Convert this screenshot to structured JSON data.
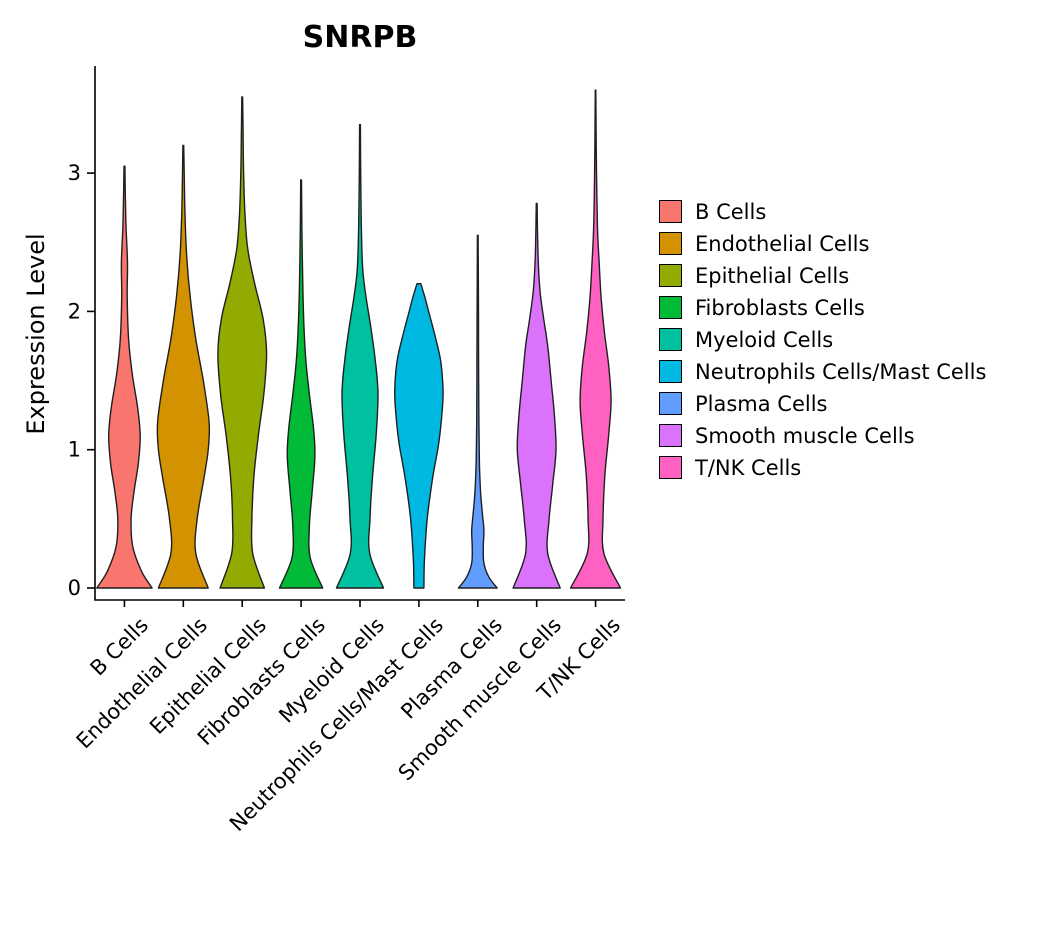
{
  "chart_data": {
    "type": "violin",
    "title": "SNRPB",
    "xlabel": "",
    "ylabel": "Expression Level",
    "ylim": [
      0,
      3.7
    ],
    "yticks": [
      0,
      1,
      2,
      3
    ],
    "legend_position": "right",
    "grid": false,
    "categories": [
      "B Cells",
      "Endothelial Cells",
      "Epithelial Cells",
      "Fibroblasts Cells",
      "Myeloid Cells",
      "Neutrophils Cells/Mast Cells",
      "Plasma Cells",
      "Smooth muscle Cells",
      "T/NK Cells"
    ],
    "series": [
      {
        "name": "B Cells",
        "color": "#F8766D",
        "max_expression": 3.05,
        "profile": [
          [
            0,
            1.0
          ],
          [
            0.12,
            0.62
          ],
          [
            0.3,
            0.3
          ],
          [
            0.5,
            0.24
          ],
          [
            0.7,
            0.35
          ],
          [
            0.9,
            0.5
          ],
          [
            1.1,
            0.57
          ],
          [
            1.3,
            0.48
          ],
          [
            1.55,
            0.28
          ],
          [
            1.8,
            0.15
          ],
          [
            2.1,
            0.1
          ],
          [
            2.35,
            0.11
          ],
          [
            2.6,
            0.06
          ],
          [
            2.85,
            0.03
          ],
          [
            3.05,
            0.015
          ]
        ]
      },
      {
        "name": "Endothelial Cells",
        "color": "#D39200",
        "max_expression": 3.2,
        "profile": [
          [
            0,
            0.9
          ],
          [
            0.25,
            0.45
          ],
          [
            0.5,
            0.5
          ],
          [
            0.8,
            0.75
          ],
          [
            1.0,
            0.9
          ],
          [
            1.2,
            0.93
          ],
          [
            1.5,
            0.72
          ],
          [
            1.8,
            0.45
          ],
          [
            2.1,
            0.25
          ],
          [
            2.4,
            0.12
          ],
          [
            2.7,
            0.06
          ],
          [
            3.0,
            0.03
          ],
          [
            3.2,
            0.015
          ]
        ]
      },
      {
        "name": "Epithelial Cells",
        "color": "#93AA00",
        "max_expression": 3.55,
        "profile": [
          [
            0,
            0.8
          ],
          [
            0.25,
            0.38
          ],
          [
            0.5,
            0.35
          ],
          [
            0.8,
            0.42
          ],
          [
            1.1,
            0.58
          ],
          [
            1.4,
            0.78
          ],
          [
            1.7,
            0.88
          ],
          [
            1.95,
            0.75
          ],
          [
            2.2,
            0.45
          ],
          [
            2.45,
            0.2
          ],
          [
            2.7,
            0.1
          ],
          [
            3.0,
            0.05
          ],
          [
            3.3,
            0.03
          ],
          [
            3.55,
            0.015
          ]
        ]
      },
      {
        "name": "Fibroblasts Cells",
        "color": "#00BA38",
        "max_expression": 2.95,
        "profile": [
          [
            0,
            0.78
          ],
          [
            0.22,
            0.33
          ],
          [
            0.45,
            0.3
          ],
          [
            0.7,
            0.4
          ],
          [
            0.95,
            0.5
          ],
          [
            1.15,
            0.45
          ],
          [
            1.4,
            0.3
          ],
          [
            1.65,
            0.17
          ],
          [
            1.9,
            0.1
          ],
          [
            2.2,
            0.06
          ],
          [
            2.6,
            0.03
          ],
          [
            2.95,
            0.015
          ]
        ]
      },
      {
        "name": "Myeloid Cells",
        "color": "#00C19F",
        "max_expression": 3.35,
        "profile": [
          [
            0,
            0.85
          ],
          [
            0.25,
            0.35
          ],
          [
            0.5,
            0.36
          ],
          [
            0.8,
            0.45
          ],
          [
            1.1,
            0.58
          ],
          [
            1.4,
            0.65
          ],
          [
            1.65,
            0.55
          ],
          [
            1.9,
            0.38
          ],
          [
            2.1,
            0.22
          ],
          [
            2.3,
            0.1
          ],
          [
            2.6,
            0.05
          ],
          [
            3.0,
            0.025
          ],
          [
            3.35,
            0.015
          ]
        ]
      },
      {
        "name": "Neutrophils Cells/Mast Cells",
        "color": "#00B9E3",
        "max_expression": 2.2,
        "profile": [
          [
            0,
            0.18
          ],
          [
            0.2,
            0.2
          ],
          [
            0.5,
            0.3
          ],
          [
            0.8,
            0.5
          ],
          [
            1.05,
            0.72
          ],
          [
            1.3,
            0.85
          ],
          [
            1.45,
            0.87
          ],
          [
            1.65,
            0.78
          ],
          [
            1.85,
            0.55
          ],
          [
            2.0,
            0.35
          ],
          [
            2.1,
            0.22
          ],
          [
            2.2,
            0.07
          ]
        ]
      },
      {
        "name": "Plasma Cells",
        "color": "#619CFF",
        "max_expression": 2.55,
        "profile": [
          [
            0,
            0.7
          ],
          [
            0.08,
            0.4
          ],
          [
            0.18,
            0.22
          ],
          [
            0.3,
            0.2
          ],
          [
            0.42,
            0.22
          ],
          [
            0.55,
            0.16
          ],
          [
            0.7,
            0.1
          ],
          [
            0.9,
            0.06
          ],
          [
            1.2,
            0.04
          ],
          [
            1.6,
            0.03
          ],
          [
            2.0,
            0.025
          ],
          [
            2.55,
            0.012
          ]
        ]
      },
      {
        "name": "Smooth muscle Cells",
        "color": "#DB72FB",
        "max_expression": 2.78,
        "profile": [
          [
            0,
            0.85
          ],
          [
            0.25,
            0.4
          ],
          [
            0.5,
            0.45
          ],
          [
            0.75,
            0.58
          ],
          [
            1.0,
            0.7
          ],
          [
            1.25,
            0.64
          ],
          [
            1.5,
            0.52
          ],
          [
            1.75,
            0.4
          ],
          [
            1.95,
            0.25
          ],
          [
            2.15,
            0.12
          ],
          [
            2.4,
            0.05
          ],
          [
            2.78,
            0.015
          ]
        ]
      },
      {
        "name": "T/NK Cells",
        "color": "#FF61C3",
        "max_expression": 3.6,
        "profile": [
          [
            0,
            0.9
          ],
          [
            0.25,
            0.3
          ],
          [
            0.5,
            0.27
          ],
          [
            0.8,
            0.33
          ],
          [
            1.1,
            0.47
          ],
          [
            1.35,
            0.56
          ],
          [
            1.6,
            0.48
          ],
          [
            1.85,
            0.32
          ],
          [
            2.1,
            0.2
          ],
          [
            2.35,
            0.13
          ],
          [
            2.6,
            0.07
          ],
          [
            3.0,
            0.035
          ],
          [
            3.3,
            0.02
          ],
          [
            3.6,
            0.01
          ]
        ]
      }
    ]
  }
}
